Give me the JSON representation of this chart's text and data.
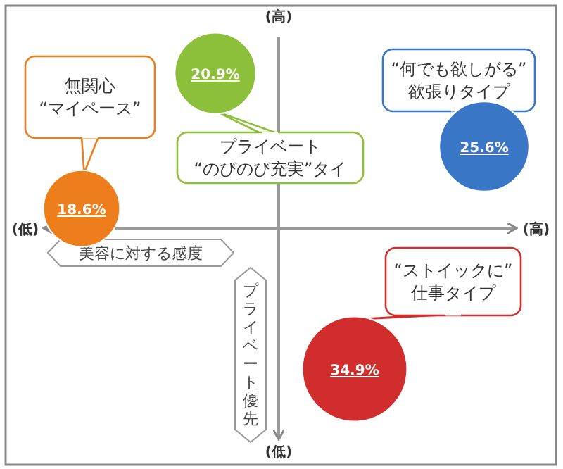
{
  "chart_data": {
    "type": "other",
    "xlabel": "美容に対する感度",
    "ylabel": "プライベート優先",
    "annotations": [
      "(低)",
      "(高)",
      "(高)",
      "(低)"
    ],
    "categories": [
      "無関心\n“マイペース”",
      "プライベート\n“のびのび充実”タイ",
      "“何でも欲しがる”\n欲張りタイプ",
      "“ストイックに”\n仕事タイプ"
    ],
    "values": [
      18.6,
      20.9,
      25.6,
      34.9
    ],
    "value_labels": [
      "18.6%",
      "20.9%",
      "25.6%",
      "34.9%"
    ],
    "colors": [
      "#ee7d1c",
      "#8cbf3a",
      "#3a76c6",
      "#d12d2d"
    ]
  }
}
